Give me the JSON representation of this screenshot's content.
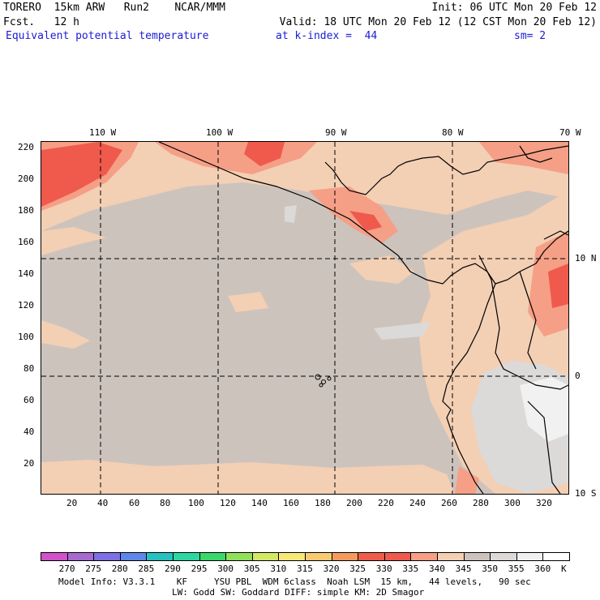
{
  "header": {
    "line1_left": "TORERO  15km ARW   Run2    NCAR/MMM",
    "line1_right": "Init: 06 UTC Mon 20 Feb 12",
    "line2_left": "Fcst.   12 h",
    "line2_right": "Valid: 18 UTC Mon 20 Feb 12 (12 CST Mon 20 Feb 12)",
    "field": "Equivalent potential temperature",
    "level": "at k-index =  44",
    "smoothing": "sm= 2"
  },
  "map": {
    "lon_labels": [
      "110 W",
      "100 W",
      "90 W",
      "80 W",
      "70 W"
    ],
    "lat_labels": [
      "10 N",
      "0",
      "10 S"
    ],
    "x_ticks": [
      "20",
      "40",
      "60",
      "80",
      "100",
      "120",
      "140",
      "160",
      "180",
      "200",
      "220",
      "240",
      "260",
      "280",
      "300",
      "320"
    ],
    "y_ticks": [
      "220",
      "200",
      "180",
      "160",
      "140",
      "120",
      "100",
      "80",
      "60",
      "40",
      "20"
    ],
    "colors": {
      "background_field": "#cdc3bd",
      "light_field": "#f3cfb4",
      "warm_field": "#f59f86",
      "hot_field": "#ef5a4c",
      "cold_field": "#dcd9d9",
      "coldest_field": "#f1f1f1"
    }
  },
  "colorbar": {
    "labels": [
      "270",
      "275",
      "280",
      "285",
      "290",
      "295",
      "300",
      "305",
      "310",
      "315",
      "320",
      "325",
      "330",
      "335",
      "340",
      "345",
      "350",
      "355",
      "360",
      "K"
    ],
    "colors": [
      "#d052c8",
      "#a76bd0",
      "#7f6fe3",
      "#5f87e9",
      "#29c0c0",
      "#2ed7a0",
      "#3ad86a",
      "#8fe05a",
      "#d2e866",
      "#f8e879",
      "#f8ca72",
      "#f59a5d",
      "#ee5c4a",
      "#ef5a4c",
      "#f59f86",
      "#f3cfb4",
      "#cdc3bd",
      "#dcd9d9",
      "#f1f1f1",
      "#ffffff"
    ]
  },
  "footer": {
    "line1": "Model Info: V3.3.1    KF     YSU PBL  WDM 6class  Noah LSM  15 km,   44 levels,   90 sec",
    "line2": "LW: Godd SW: Goddard DIFF: simple KM: 2D Smagor"
  }
}
